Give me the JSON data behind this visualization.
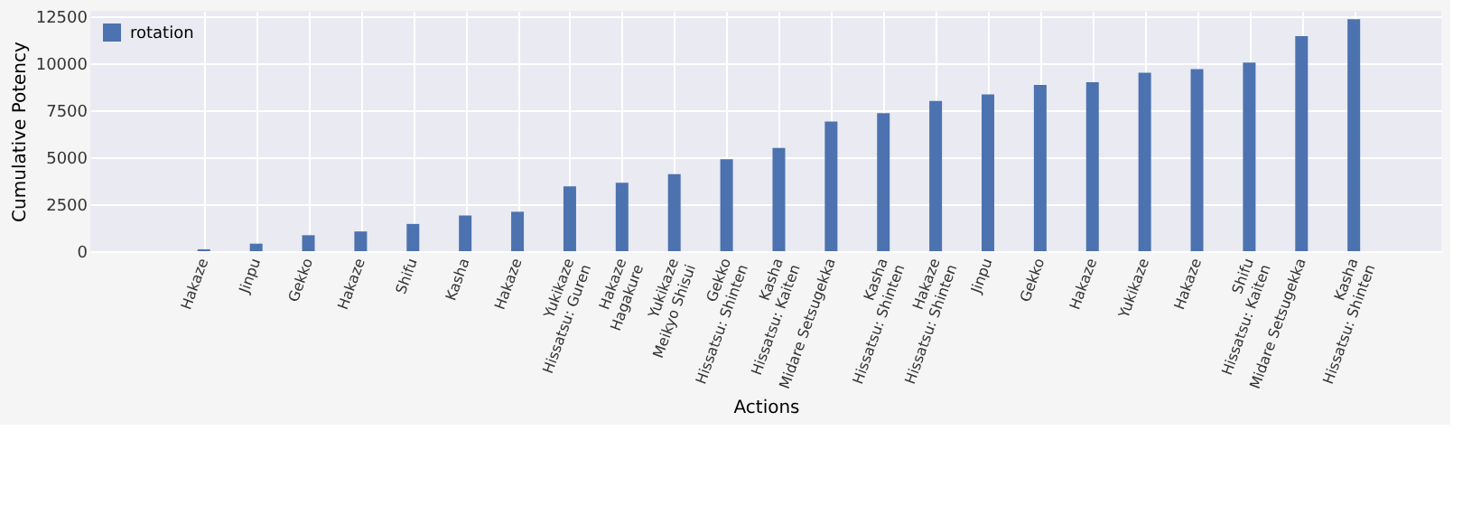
{
  "chart_data": {
    "type": "bar",
    "xlabel": "Actions",
    "ylabel": "Cumulative Potency",
    "categories": [
      "Hakaze",
      "Jinpu",
      "Gekko",
      "Hakaze",
      "Shifu",
      "Kasha",
      "Hakaze",
      "Yukikaze\nHissatsu: Guren",
      "Hakaze\nHagakure",
      "Yukikaze\nMeikyo Shisui",
      "Gekko\nHissatsu: Shinten",
      "Kasha\nHissatsu: Kaiten",
      "Midare Setsugekka",
      "Kasha\nHissatsu: Shinten",
      "Hakaze\nHissatsu: Shinten",
      "Jinpu",
      "Gekko",
      "Hakaze",
      "Yukikaze",
      "Hakaze",
      "Shifu\nHissatsu: Kaiten",
      "Midare Setsugekka",
      "Kasha\nHissatsu: Shinten"
    ],
    "series": [
      {
        "name": "rotation",
        "color": "#4c72b0",
        "values": [
          100,
          400,
          850,
          1050,
          1450,
          1900,
          2100,
          3450,
          3650,
          4100,
          4900,
          5500,
          6900,
          7350,
          8000,
          8350,
          8850,
          9000,
          9500,
          9700,
          10050,
          11450,
          12350
        ]
      }
    ],
    "ylim": [
      0,
      12800
    ],
    "yticks": [
      0,
      2500,
      5000,
      7500,
      10000,
      12500
    ],
    "grid": true,
    "legend": "top left"
  }
}
